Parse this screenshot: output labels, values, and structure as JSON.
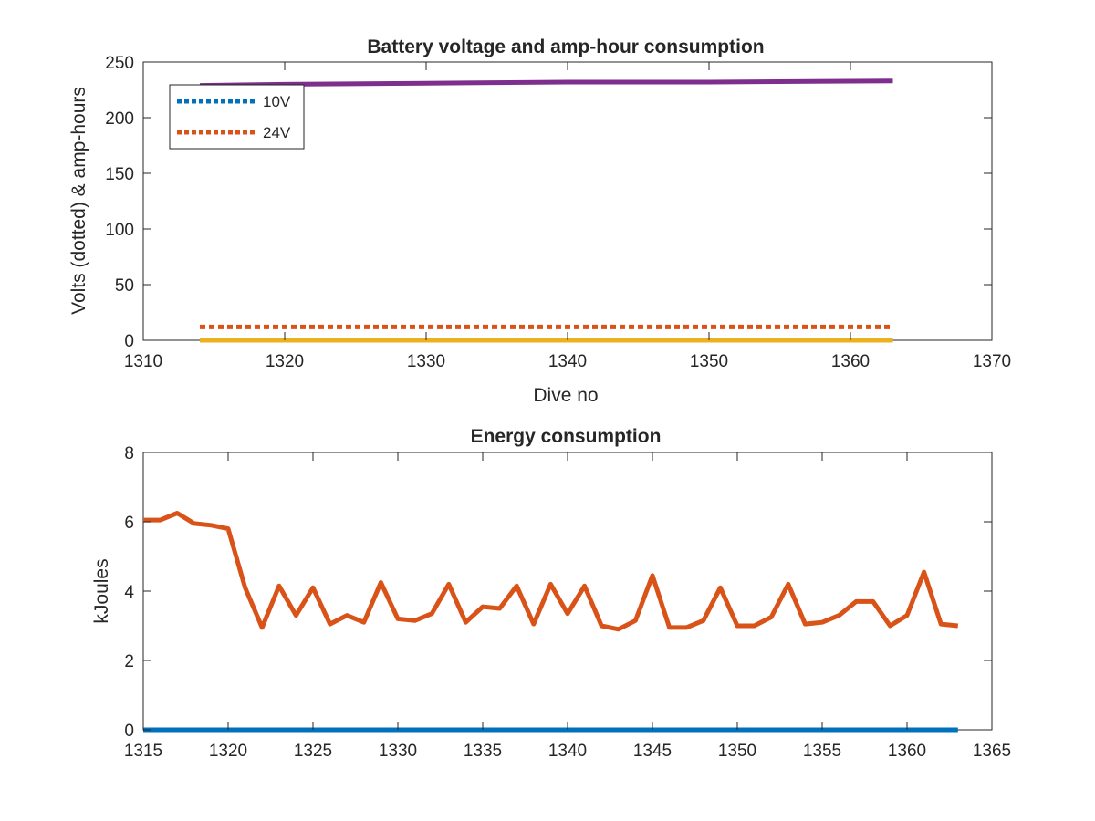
{
  "chart_data": [
    {
      "type": "line",
      "title": "Battery voltage and amp-hour consumption",
      "xlabel": "Dive no",
      "ylabel": "Volts (dotted) & amp-hours",
      "xlim": [
        1310,
        1370
      ],
      "ylim": [
        0,
        250
      ],
      "xticks": [
        1310,
        1320,
        1330,
        1340,
        1350,
        1360,
        1370
      ],
      "yticks": [
        0,
        50,
        100,
        150,
        200,
        250
      ],
      "grid": false,
      "legend_location": "top-left",
      "series": [
        {
          "name": "10V",
          "style": "dotted",
          "color": "#0072BD",
          "x": [
            1314,
            1363
          ],
          "values": [
            0,
            0
          ]
        },
        {
          "name": "24V",
          "style": "dotted",
          "color": "#D95319",
          "x": [
            1314,
            1363
          ],
          "values": [
            12,
            12
          ]
        },
        {
          "style": "solid",
          "color": "#EDB120",
          "x": [
            1314,
            1363
          ],
          "values": [
            0,
            0
          ]
        },
        {
          "style": "solid",
          "color": "#7E2F8E",
          "x": [
            1314,
            1320,
            1330,
            1340,
            1350,
            1363
          ],
          "values": [
            229,
            230,
            231,
            232,
            232,
            233
          ]
        }
      ]
    },
    {
      "type": "line",
      "title": "Energy consumption",
      "xlabel": "",
      "ylabel": "kJoules",
      "xlim": [
        1315,
        1365
      ],
      "ylim": [
        0,
        8
      ],
      "xticks": [
        1315,
        1320,
        1325,
        1330,
        1335,
        1340,
        1345,
        1350,
        1355,
        1360,
        1365
      ],
      "yticks": [
        0,
        2,
        4,
        6,
        8
      ],
      "grid": false,
      "series": [
        {
          "style": "solid",
          "color": "#0072BD",
          "x": [
            1315,
            1363
          ],
          "values": [
            0,
            0
          ]
        },
        {
          "style": "solid",
          "color": "#D95319",
          "x": [
            1315,
            1316,
            1317,
            1318,
            1319,
            1320,
            1321,
            1322,
            1323,
            1324,
            1325,
            1326,
            1327,
            1328,
            1329,
            1330,
            1331,
            1332,
            1333,
            1334,
            1335,
            1336,
            1337,
            1338,
            1339,
            1340,
            1341,
            1342,
            1343,
            1344,
            1345,
            1346,
            1347,
            1348,
            1349,
            1350,
            1351,
            1352,
            1353,
            1354,
            1355,
            1356,
            1357,
            1358,
            1359,
            1360,
            1361,
            1362,
            1363
          ],
          "values": [
            6.05,
            6.05,
            6.25,
            5.95,
            5.9,
            5.8,
            4.1,
            2.95,
            4.15,
            3.3,
            4.1,
            3.05,
            3.3,
            3.1,
            4.25,
            3.2,
            3.15,
            3.35,
            4.2,
            3.1,
            3.55,
            3.5,
            4.15,
            3.05,
            4.2,
            3.35,
            4.15,
            3.0,
            2.9,
            3.15,
            4.45,
            2.95,
            2.95,
            3.15,
            4.1,
            3.0,
            3.0,
            3.25,
            4.2,
            3.05,
            3.1,
            3.3,
            3.7,
            3.7,
            3.0,
            3.3,
            4.55,
            3.05,
            3.0
          ]
        }
      ]
    }
  ]
}
